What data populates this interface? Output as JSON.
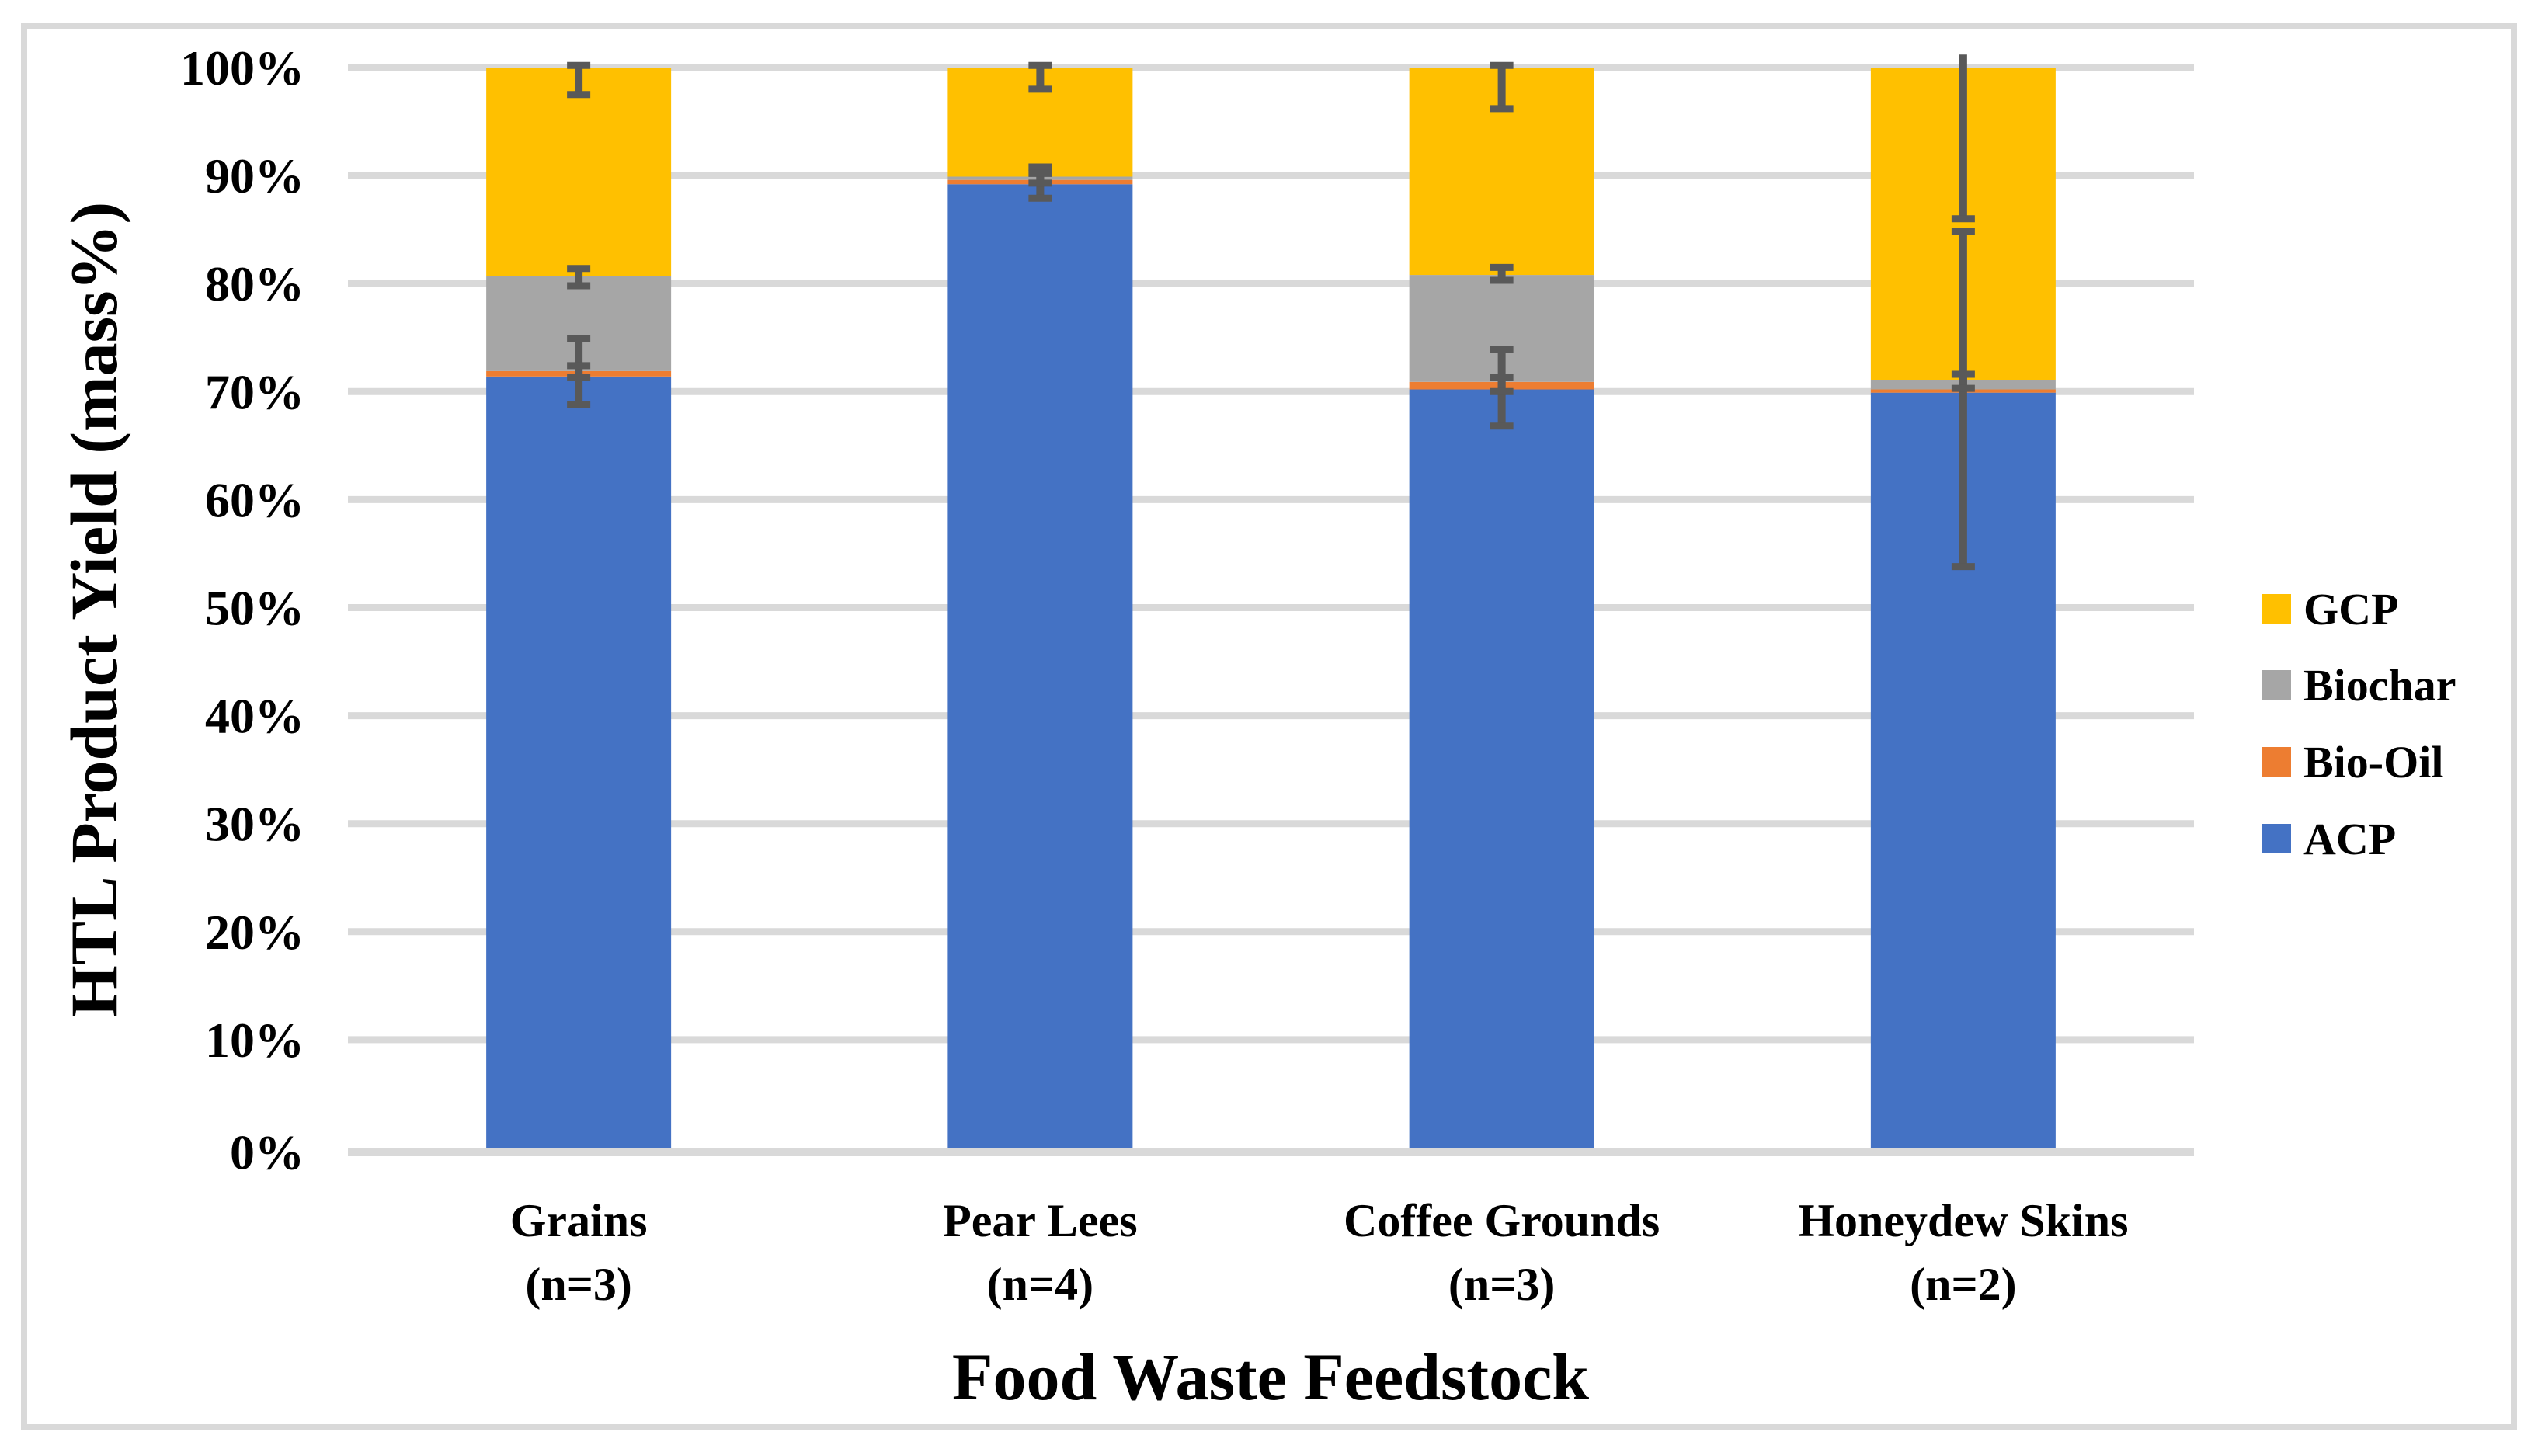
{
  "chart_data": {
    "type": "bar",
    "stacked": true,
    "x_axis_title": "Food Waste Feedstock",
    "y_axis_title": "HTL Product Yield (mass%)",
    "ylim": [
      0,
      100
    ],
    "grid": true,
    "legend_position": "right",
    "y_ticks": [
      "0%",
      "10%",
      "20%",
      "30%",
      "40%",
      "50%",
      "60%",
      "70%",
      "80%",
      "90%",
      "100%"
    ],
    "categories": [
      {
        "line1": "Grains",
        "line2": "(n=3)"
      },
      {
        "line1": "Pear Lees",
        "line2": "(n=4)"
      },
      {
        "line1": "Coffee Grounds",
        "line2": "(n=3)"
      },
      {
        "line1": "Honeydew Skins",
        "line2": "(n=2)"
      }
    ],
    "series": [
      {
        "name": "ACP",
        "color": "#4472C4",
        "values": [
          71.4,
          89.2,
          70.2,
          69.9
        ]
      },
      {
        "name": "Bio-Oil",
        "color": "#ED7D31",
        "values": [
          0.5,
          0.4,
          0.7,
          0.3
        ]
      },
      {
        "name": "Biochar",
        "color": "#A6A6A6",
        "values": [
          8.8,
          0.3,
          9.9,
          0.9
        ]
      },
      {
        "name": "GCP",
        "color": "#FFC000",
        "values": [
          19.3,
          10.1,
          19.2,
          28.9
        ]
      }
    ],
    "error_bars": [
      {
        "category": "Grains",
        "bars": [
          {
            "at": "ACP-top",
            "lo": 68.8,
            "hi": 74.9,
            "cap_top": true,
            "cap_bottom": true
          },
          {
            "at": "Bio-Oil-top",
            "lo": 71.3,
            "hi": 72.4,
            "cap_top": true,
            "cap_bottom": true
          },
          {
            "at": "Biochar-top",
            "lo": 79.8,
            "hi": 81.4,
            "cap_top": true,
            "cap_bottom": true
          },
          {
            "at": "GCP-top",
            "lo": 97.5,
            "hi": 100.2,
            "cap_top": true,
            "cap_bottom": true
          }
        ]
      },
      {
        "category": "Pear Lees",
        "bars": [
          {
            "at": "ACP-top",
            "lo": 87.9,
            "hi": 90.8,
            "cap_top": true,
            "cap_bottom": true
          },
          {
            "at": "Bio-Oil-top",
            "lo": 89.3,
            "hi": 90.2,
            "cap_top": true,
            "cap_bottom": true
          },
          {
            "at": "GCP-top",
            "lo": 98.0,
            "hi": 100.2,
            "cap_top": true,
            "cap_bottom": true
          }
        ]
      },
      {
        "category": "Coffee Grounds",
        "bars": [
          {
            "at": "ACP-top",
            "lo": 66.8,
            "hi": 73.9,
            "cap_top": true,
            "cap_bottom": true
          },
          {
            "at": "Bio-Oil-top",
            "lo": 70.0,
            "hi": 71.3,
            "cap_top": true,
            "cap_bottom": true
          },
          {
            "at": "Biochar-top",
            "lo": 80.3,
            "hi": 81.5,
            "cap_top": true,
            "cap_bottom": true
          },
          {
            "at": "GCP-top",
            "lo": 96.2,
            "hi": 100.2,
            "cap_top": true,
            "cap_bottom": true
          }
        ]
      },
      {
        "category": "Honeydew Skins",
        "bars": [
          {
            "at": "ACP-top",
            "lo": 53.8,
            "hi": 84.8,
            "cap_top": true,
            "cap_bottom": true
          },
          {
            "at": "Bio-Oil-top",
            "lo": 70.3,
            "hi": 71.6,
            "cap_top": true,
            "cap_bottom": true
          },
          {
            "at": "GCP-top",
            "lo": 86.0,
            "hi": 101.2,
            "cap_top": false,
            "cap_bottom": true
          }
        ]
      }
    ],
    "legend": {
      "items": [
        {
          "label": "GCP",
          "color": "#FFC000"
        },
        {
          "label": "Biochar",
          "color": "#A6A6A6"
        },
        {
          "label": "Bio-Oil",
          "color": "#ED7D31"
        },
        {
          "label": "ACP",
          "color": "#4472C4"
        }
      ]
    }
  },
  "style_colors": {
    "gridline": "#D9D9D9",
    "axis_line": "#D9D9D9",
    "frame_border": "#D9D9D9",
    "error_bar": "#595959",
    "text": "#000000",
    "background": "#FFFFFF"
  }
}
